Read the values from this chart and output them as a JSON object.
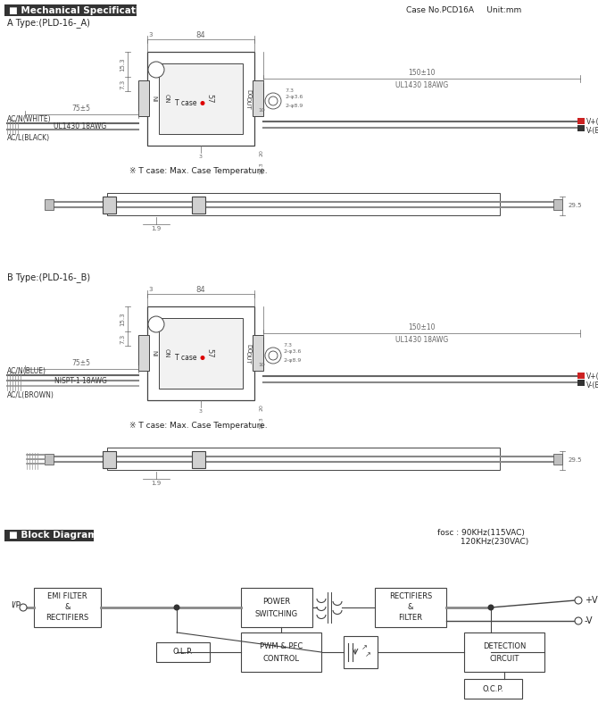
{
  "title_mech": "Mechanical Specification",
  "title_block": "Block Diagram",
  "case_info": "Case No.PCD16A     Unit:mm",
  "type_a_label": "A Type:(PLD-16-_A)",
  "type_b_label": "B Type:(PLD-16-_B)",
  "bg_color": "#ffffff",
  "line_color": "#444444",
  "dim_color": "#666666",
  "header_fill": "#333333",
  "header_text": "#ffffff"
}
